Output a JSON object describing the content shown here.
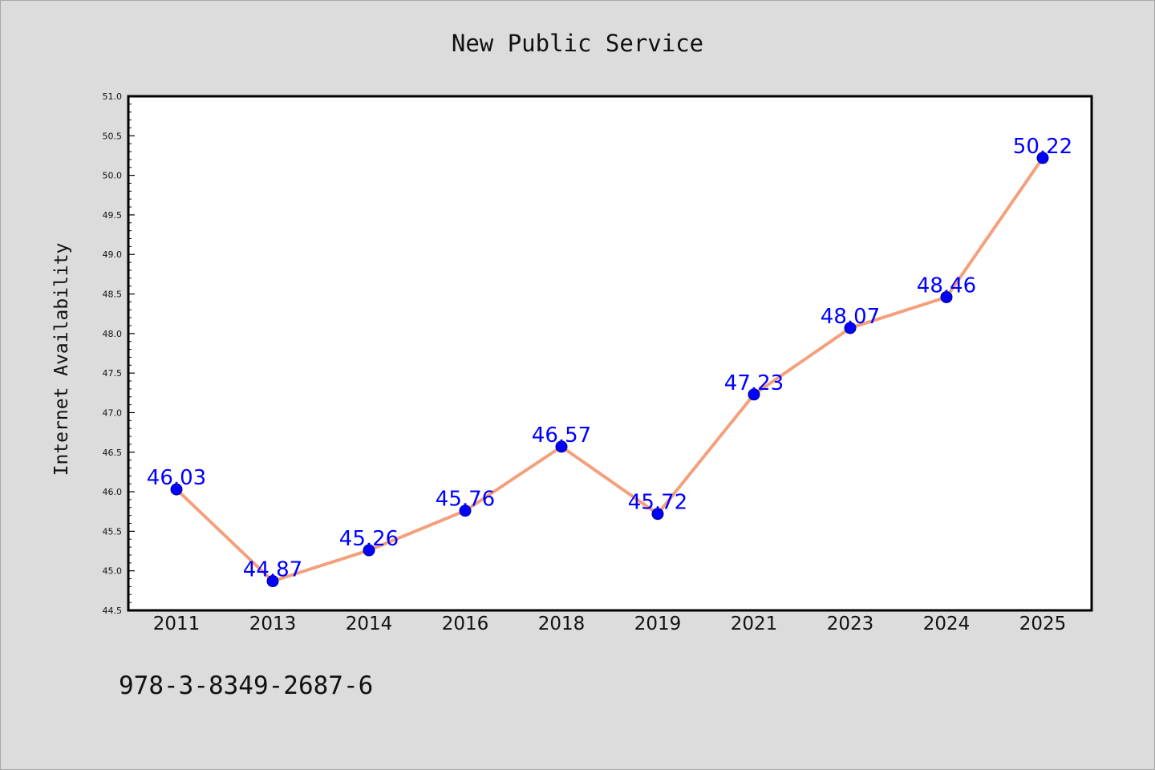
{
  "chart_data": {
    "type": "line",
    "title": "New Public Service",
    "xlabel": "",
    "ylabel": "Internet Availability",
    "categories": [
      "2011",
      "2013",
      "2014",
      "2016",
      "2018",
      "2019",
      "2021",
      "2023",
      "2024",
      "2025"
    ],
    "values": [
      46.03,
      44.87,
      45.26,
      45.76,
      46.57,
      45.72,
      47.23,
      48.07,
      48.46,
      50.22
    ],
    "ylim": [
      44.5,
      51.0
    ],
    "ytick_step": 0.5,
    "grid": false,
    "data_labels": true,
    "colors": {
      "line": "#f4a07c",
      "marker": "#0000ff",
      "label": "#0000ff",
      "plot_background": "#ffffff",
      "figure_background": "#dcdcdc"
    }
  },
  "footer": {
    "isbn": "978-3-8349-2687-6"
  }
}
